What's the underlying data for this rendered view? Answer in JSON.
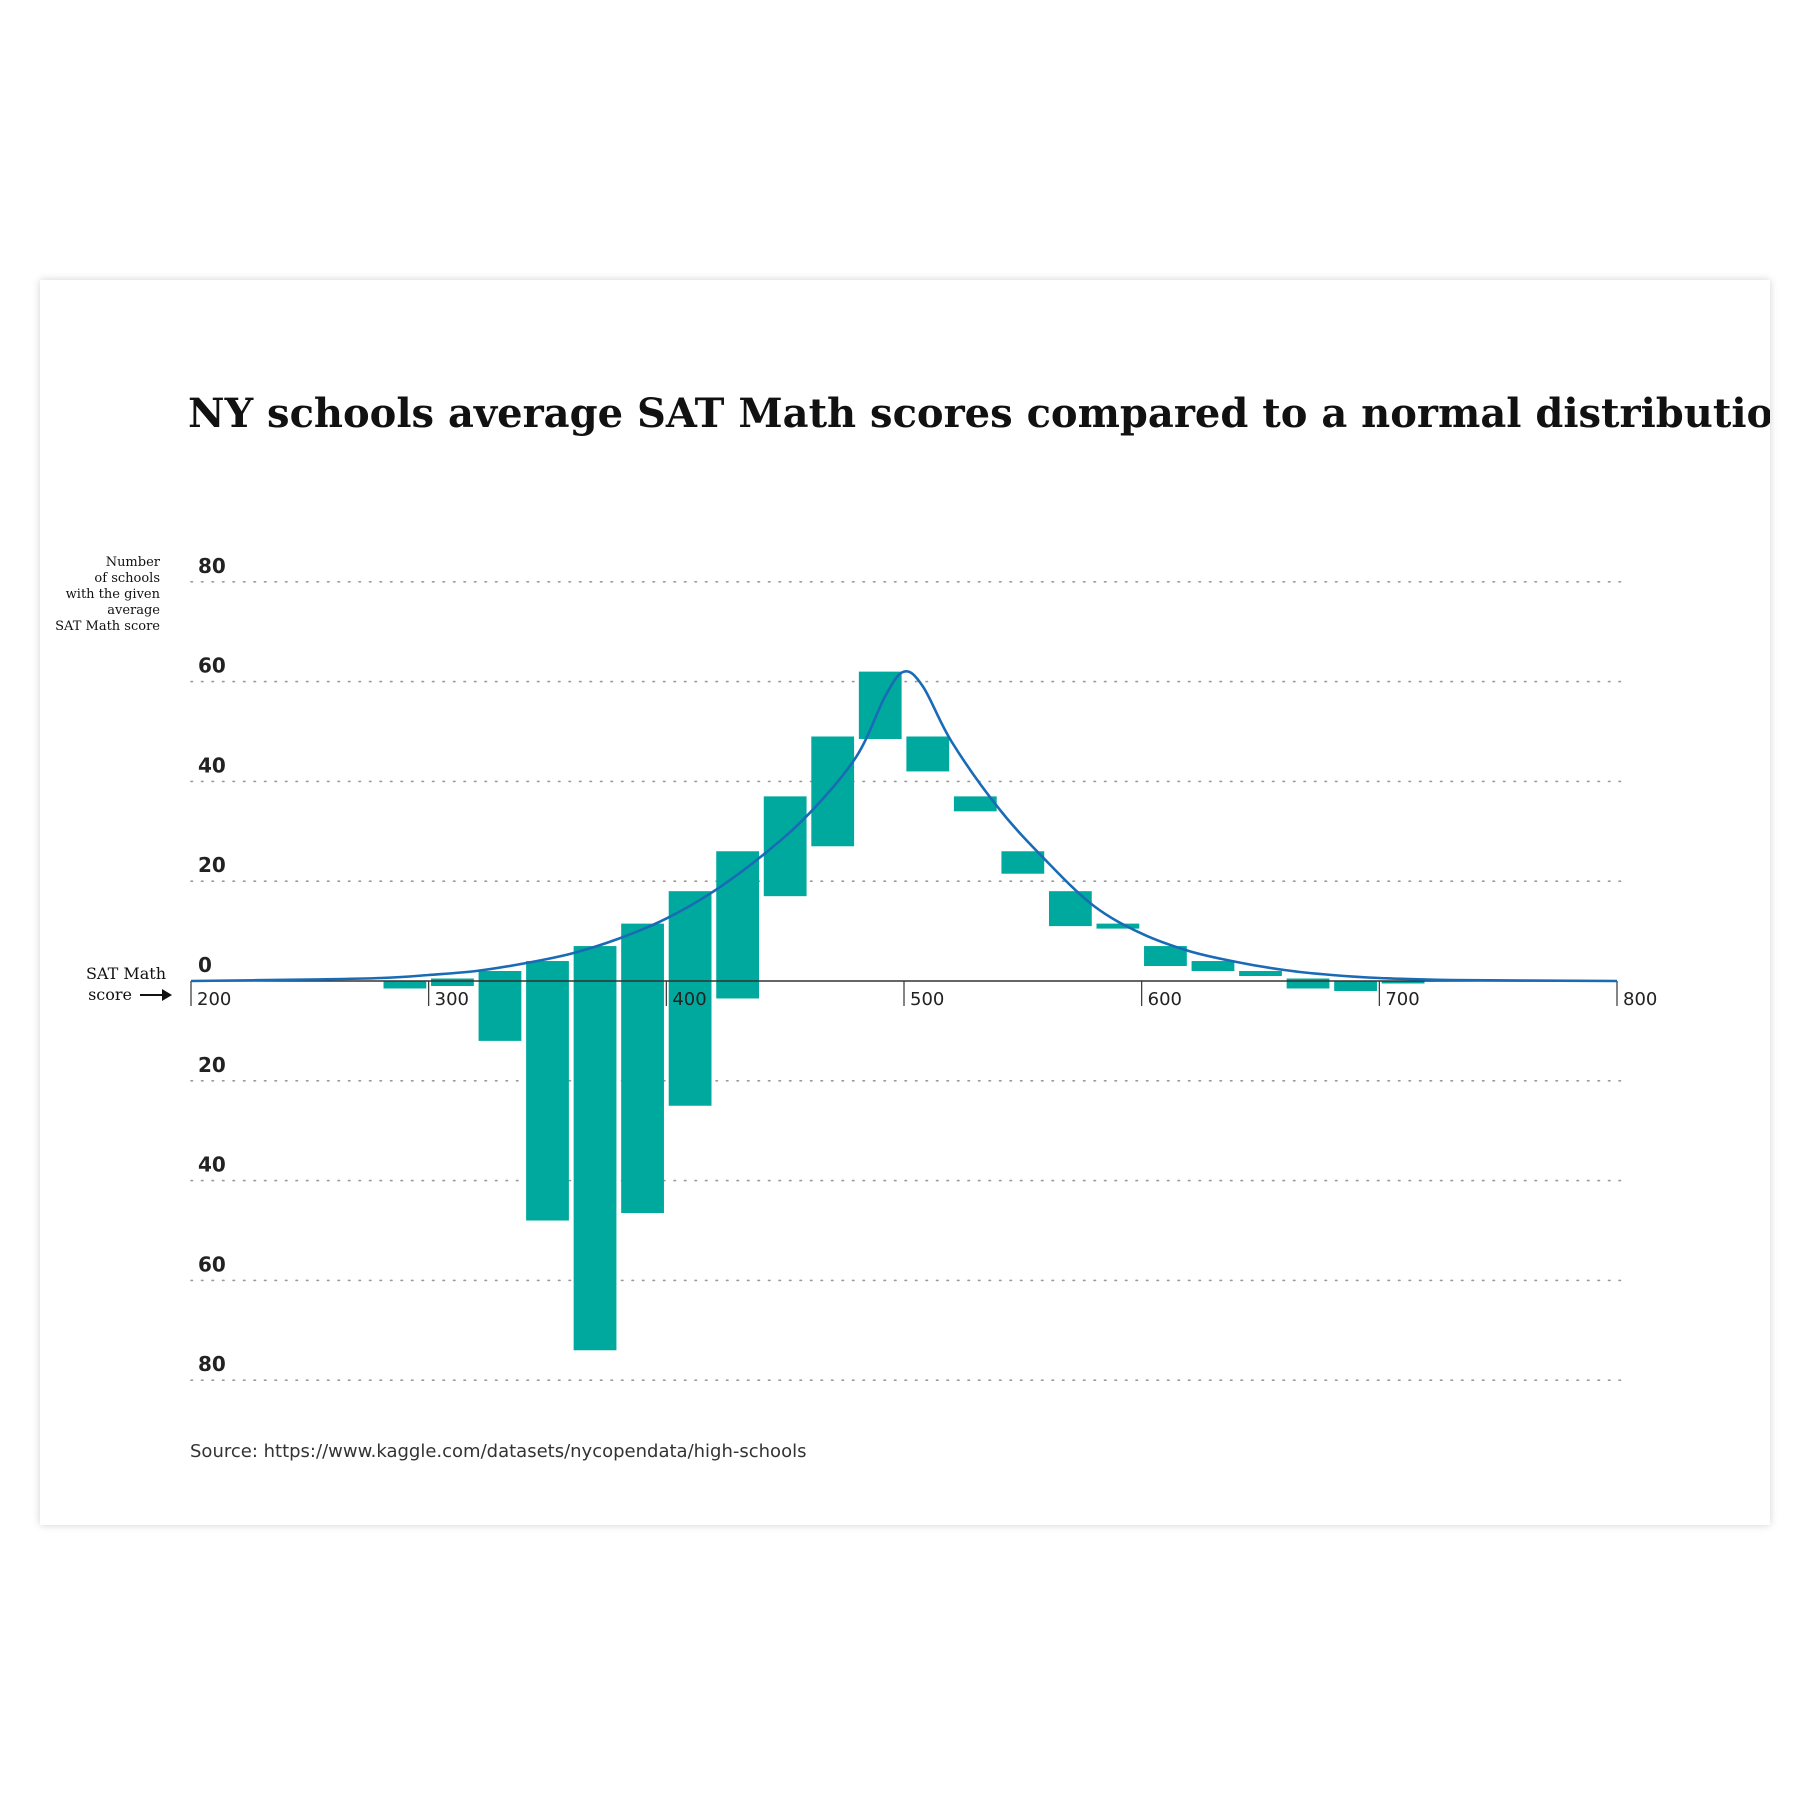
{
  "chart_data": {
    "type": "bar",
    "title": "NY schools average SAT Math scores compared to a normal distribution",
    "ylabel_lines": [
      "Number",
      "of schools",
      "with the given",
      "average",
      "SAT Math score"
    ],
    "xlabel_lines": [
      "SAT Math",
      "score"
    ],
    "source": "Source: https://www.kaggle.com/datasets/nycopendata/high-schools",
    "xlim": [
      200,
      800
    ],
    "ylim": [
      -80,
      80
    ],
    "x_ticks": [
      200,
      300,
      400,
      500,
      600,
      700,
      800
    ],
    "x_tick_labels": [
      "200",
      "300",
      "400",
      "500",
      "600",
      "700",
      "800"
    ],
    "y_ticks": [
      80,
      60,
      40,
      20,
      0,
      -20,
      -40,
      -60,
      -80
    ],
    "y_tick_labels": [
      "80",
      "60",
      "40",
      "20",
      "0",
      "20",
      "40",
      "60",
      "80"
    ],
    "bin_width": 20,
    "bars": [
      {
        "x": 290,
        "top": 0,
        "bottom": -1.5
      },
      {
        "x": 310,
        "top": 0.5,
        "bottom": -1
      },
      {
        "x": 330,
        "top": 2,
        "bottom": -12
      },
      {
        "x": 350,
        "top": 4,
        "bottom": -48
      },
      {
        "x": 370,
        "top": 7,
        "bottom": -74
      },
      {
        "x": 390,
        "top": 11.5,
        "bottom": -46.5
      },
      {
        "x": 410,
        "top": 18,
        "bottom": -25
      },
      {
        "x": 430,
        "top": 26,
        "bottom": -3.5
      },
      {
        "x": 450,
        "top": 37,
        "bottom": 17
      },
      {
        "x": 470,
        "top": 49,
        "bottom": 27
      },
      {
        "x": 490,
        "top": 62,
        "bottom": 48.5
      },
      {
        "x": 510,
        "top": 49,
        "bottom": 42
      },
      {
        "x": 530,
        "top": 37,
        "bottom": 34
      },
      {
        "x": 550,
        "top": 26,
        "bottom": 21.5
      },
      {
        "x": 570,
        "top": 18,
        "bottom": 11
      },
      {
        "x": 590,
        "top": 11.5,
        "bottom": 10.5
      },
      {
        "x": 610,
        "top": 7,
        "bottom": 3
      },
      {
        "x": 630,
        "top": 4,
        "bottom": 2
      },
      {
        "x": 650,
        "top": 2,
        "bottom": 1
      },
      {
        "x": 670,
        "top": 0.5,
        "bottom": -1.5
      },
      {
        "x": 690,
        "top": 0,
        "bottom": -2
      },
      {
        "x": 710,
        "top": 0,
        "bottom": -0.5
      }
    ],
    "curve": [
      [
        200,
        0
      ],
      [
        250,
        0.3
      ],
      [
        280,
        0.6
      ],
      [
        300,
        1.2
      ],
      [
        320,
        2
      ],
      [
        340,
        3.5
      ],
      [
        360,
        5.5
      ],
      [
        380,
        8.5
      ],
      [
        400,
        12.5
      ],
      [
        420,
        18
      ],
      [
        440,
        25
      ],
      [
        460,
        33.5
      ],
      [
        480,
        45
      ],
      [
        492,
        57
      ],
      [
        500,
        62
      ],
      [
        508,
        59
      ],
      [
        520,
        48
      ],
      [
        540,
        34.5
      ],
      [
        560,
        24
      ],
      [
        580,
        15
      ],
      [
        600,
        9.5
      ],
      [
        620,
        6
      ],
      [
        640,
        3.8
      ],
      [
        660,
        2.2
      ],
      [
        680,
        1.2
      ],
      [
        700,
        0.6
      ],
      [
        730,
        0.2
      ],
      [
        800,
        0
      ]
    ],
    "colors": {
      "bar": "#00a99d",
      "curve": "#1a6bb5",
      "axis": "#333333",
      "grid": "#9a9a9a"
    },
    "grid": true
  }
}
